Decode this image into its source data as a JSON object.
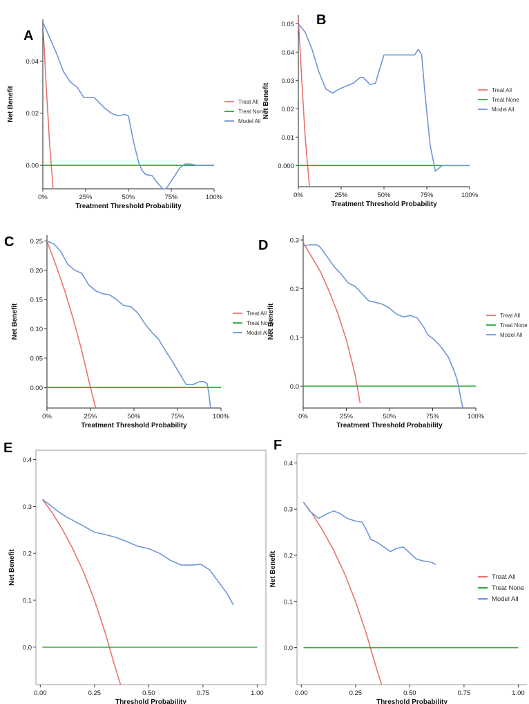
{
  "chart_data": [
    {
      "panel": "A",
      "type": "line",
      "title": "",
      "xlabel": "Treatment Threshold Probability",
      "ylabel": "Net Benefit",
      "xlim": [
        0,
        1
      ],
      "ylim": [
        -0.009,
        0.056
      ],
      "xticks": [
        0,
        0.25,
        0.5,
        0.75,
        1.0
      ],
      "xtick_labels": [
        "0%",
        "25%",
        "50%",
        "75%",
        "100%"
      ],
      "yticks": [
        0.0,
        0.02,
        0.04
      ],
      "ytick_labels": [
        "0.00",
        "0.02",
        "0.04"
      ],
      "legend": [
        "Treat All",
        "Treat None",
        "Model All"
      ],
      "colors": {
        "Treat All": "#e8726c",
        "Treat None": "#2aa835",
        "Model All": "#6f95d8"
      },
      "series": [
        {
          "name": "Treat All",
          "x": [
            0.0,
            0.02,
            0.04,
            0.06
          ],
          "y": [
            0.055,
            0.03,
            0.008,
            -0.009
          ]
        },
        {
          "name": "Treat None",
          "x": [
            0.0,
            1.0
          ],
          "y": [
            0.0,
            0.0
          ]
        },
        {
          "name": "Model All",
          "x": [
            0.0,
            0.04,
            0.08,
            0.12,
            0.16,
            0.2,
            0.24,
            0.3,
            0.36,
            0.4,
            0.44,
            0.48,
            0.5,
            0.53,
            0.56,
            0.58,
            0.6,
            0.64,
            0.66,
            0.7,
            0.72,
            0.76,
            0.8,
            0.83,
            0.86,
            0.9,
            1.0
          ],
          "y": [
            0.055,
            0.049,
            0.043,
            0.036,
            0.032,
            0.03,
            0.026,
            0.026,
            0.022,
            0.02,
            0.019,
            0.0195,
            0.019,
            0.009,
            0.001,
            -0.002,
            -0.0035,
            -0.004,
            -0.006,
            -0.009,
            -0.009,
            -0.005,
            -0.001,
            0.0005,
            0.0005,
            0.0,
            0.0
          ]
        }
      ]
    },
    {
      "panel": "B",
      "type": "line",
      "title": "",
      "xlabel": "Treatment Threshold Probability",
      "ylabel": "Net Benefit",
      "xlim": [
        0,
        1
      ],
      "ylim": [
        -0.0075,
        0.053
      ],
      "xticks": [
        0,
        0.25,
        0.5,
        0.75,
        1.0
      ],
      "xtick_labels": [
        "0%",
        "25%",
        "50%",
        "75%",
        "100%"
      ],
      "yticks": [
        0.0,
        0.01,
        0.02,
        0.03,
        0.04,
        0.05
      ],
      "ytick_labels": [
        "0.000",
        "0.01",
        "0.02",
        "0.03",
        "0.04",
        "0.05"
      ],
      "legend": [
        "Treat All",
        "Treat None",
        "Model All"
      ],
      "colors": {
        "Treat All": "#e8726c",
        "Treat None": "#2aa835",
        "Model All": "#6f95d8"
      },
      "series": [
        {
          "name": "Treat All",
          "x": [
            0.0,
            0.02,
            0.04,
            0.065
          ],
          "y": [
            0.052,
            0.03,
            0.01,
            -0.0075
          ]
        },
        {
          "name": "Treat None",
          "x": [
            0.0,
            1.0
          ],
          "y": [
            0.0,
            0.0
          ]
        },
        {
          "name": "Model All",
          "x": [
            0.0,
            0.04,
            0.08,
            0.12,
            0.16,
            0.2,
            0.24,
            0.28,
            0.32,
            0.36,
            0.38,
            0.42,
            0.45,
            0.48,
            0.5,
            0.53,
            0.56,
            0.6,
            0.64,
            0.68,
            0.7,
            0.72,
            0.74,
            0.77,
            0.8,
            0.82,
            0.84,
            1.0
          ],
          "y": [
            0.05,
            0.047,
            0.041,
            0.033,
            0.027,
            0.0255,
            0.027,
            0.028,
            0.029,
            0.031,
            0.031,
            0.0285,
            0.029,
            0.035,
            0.039,
            0.039,
            0.039,
            0.039,
            0.039,
            0.039,
            0.041,
            0.039,
            0.025,
            0.007,
            -0.002,
            -0.001,
            0.0,
            0.0
          ]
        }
      ]
    },
    {
      "panel": "C",
      "type": "line",
      "title": "",
      "xlabel": "Treatment Threshold Probability",
      "ylabel": "Net Benefit",
      "xlim": [
        0,
        1
      ],
      "ylim": [
        -0.035,
        0.26
      ],
      "xticks": [
        0,
        0.25,
        0.5,
        0.75,
        1.0
      ],
      "xtick_labels": [
        "0%",
        "25%",
        "50%",
        "75%",
        "100%"
      ],
      "yticks": [
        0.0,
        0.05,
        0.1,
        0.15,
        0.2,
        0.25
      ],
      "ytick_labels": [
        "0.00",
        "0.05",
        "0.10",
        "0.15",
        "0.20",
        "0.25"
      ],
      "legend": [
        "Treat All",
        "Treat None",
        "Model All"
      ],
      "colors": {
        "Treat All": "#e8726c",
        "Treat None": "#2aa835",
        "Model All": "#6f95d8"
      },
      "series": [
        {
          "name": "Treat All",
          "x": [
            0.0,
            0.05,
            0.1,
            0.15,
            0.2,
            0.25,
            0.28
          ],
          "y": [
            0.25,
            0.21,
            0.167,
            0.118,
            0.063,
            0.0,
            -0.035
          ]
        },
        {
          "name": "Treat None",
          "x": [
            0.0,
            1.0
          ],
          "y": [
            0.0,
            0.0
          ]
        },
        {
          "name": "Model All",
          "x": [
            0.0,
            0.04,
            0.08,
            0.12,
            0.16,
            0.2,
            0.24,
            0.28,
            0.32,
            0.36,
            0.4,
            0.44,
            0.48,
            0.52,
            0.56,
            0.6,
            0.64,
            0.68,
            0.72,
            0.76,
            0.8,
            0.84,
            0.86,
            0.88,
            0.9,
            0.92,
            0.93,
            0.94
          ],
          "y": [
            0.25,
            0.245,
            0.232,
            0.21,
            0.2,
            0.195,
            0.175,
            0.165,
            0.16,
            0.158,
            0.15,
            0.14,
            0.138,
            0.128,
            0.11,
            0.095,
            0.083,
            0.063,
            0.045,
            0.025,
            0.005,
            0.005,
            0.008,
            0.01,
            0.01,
            0.007,
            -0.01,
            -0.035
          ]
        }
      ]
    },
    {
      "panel": "D",
      "type": "line",
      "title": "",
      "xlabel": "Treatment Threshold Probability",
      "ylabel": "Net Benefit",
      "xlim": [
        0,
        1
      ],
      "ylim": [
        -0.045,
        0.31
      ],
      "xticks": [
        0,
        0.25,
        0.5,
        0.75,
        1.0
      ],
      "xtick_labels": [
        "0%",
        "25%",
        "50%",
        "75%",
        "100%"
      ],
      "yticks": [
        0.0,
        0.1,
        0.2,
        0.3
      ],
      "ytick_labels": [
        "0.0",
        "0.1",
        "0.2",
        "0.3"
      ],
      "legend": [
        "Treat All",
        "Treat None",
        "Model All"
      ],
      "colors": {
        "Treat All": "#e8726c",
        "Treat None": "#2aa835",
        "Model All": "#6f95d8"
      },
      "series": [
        {
          "name": "Treat All",
          "x": [
            0.0,
            0.05,
            0.1,
            0.15,
            0.2,
            0.25,
            0.3,
            0.33
          ],
          "y": [
            0.295,
            0.265,
            0.235,
            0.195,
            0.15,
            0.095,
            0.025,
            -0.035
          ]
        },
        {
          "name": "Treat None",
          "x": [
            0.0,
            1.0
          ],
          "y": [
            0.0,
            0.0
          ]
        },
        {
          "name": "Model All",
          "x": [
            0.0,
            0.04,
            0.08,
            0.1,
            0.14,
            0.18,
            0.22,
            0.26,
            0.3,
            0.34,
            0.38,
            0.42,
            0.46,
            0.5,
            0.54,
            0.58,
            0.62,
            0.66,
            0.7,
            0.72,
            0.76,
            0.8,
            0.84,
            0.87,
            0.89,
            0.9,
            0.91,
            0.925
          ],
          "y": [
            0.288,
            0.29,
            0.29,
            0.285,
            0.265,
            0.245,
            0.23,
            0.212,
            0.205,
            0.19,
            0.175,
            0.172,
            0.168,
            0.16,
            0.148,
            0.142,
            0.145,
            0.14,
            0.12,
            0.106,
            0.095,
            0.08,
            0.06,
            0.035,
            0.015,
            0.0,
            -0.02,
            -0.045
          ]
        }
      ]
    },
    {
      "panel": "E",
      "type": "line",
      "title": "",
      "xlabel": "Threshold Probability",
      "ylabel": "Net Benefit",
      "xlim": [
        -0.02,
        1.04
      ],
      "ylim": [
        -0.08,
        0.42
      ],
      "xticks": [
        0.0,
        0.25,
        0.5,
        0.75,
        1.0
      ],
      "xtick_labels": [
        "0.00",
        "0.25",
        "0.50",
        "0.75",
        "1.00"
      ],
      "yticks": [
        0.0,
        0.1,
        0.2,
        0.3,
        0.4
      ],
      "ytick_labels": [
        "0.0",
        "0.1",
        "0.2",
        "0.3",
        "0.4"
      ],
      "legend": [],
      "colors": {
        "Treat All": "#e8726c",
        "Treat None": "#2aa835",
        "Model All": "#6f95d8"
      },
      "series": [
        {
          "name": "Treat All",
          "x": [
            0.01,
            0.05,
            0.1,
            0.15,
            0.2,
            0.25,
            0.3,
            0.34,
            0.37
          ],
          "y": [
            0.315,
            0.29,
            0.253,
            0.21,
            0.16,
            0.1,
            0.03,
            -0.035,
            -0.08
          ]
        },
        {
          "name": "Treat None",
          "x": [
            0.01,
            1.0
          ],
          "y": [
            0.0,
            0.0
          ]
        },
        {
          "name": "Model All",
          "x": [
            0.01,
            0.04,
            0.08,
            0.12,
            0.16,
            0.2,
            0.25,
            0.3,
            0.35,
            0.4,
            0.45,
            0.5,
            0.55,
            0.6,
            0.65,
            0.7,
            0.74,
            0.78,
            0.82,
            0.86,
            0.89
          ],
          "y": [
            0.315,
            0.305,
            0.29,
            0.278,
            0.268,
            0.258,
            0.245,
            0.24,
            0.234,
            0.225,
            0.215,
            0.21,
            0.2,
            0.185,
            0.175,
            0.175,
            0.177,
            0.165,
            0.14,
            0.115,
            0.09
          ]
        }
      ]
    },
    {
      "panel": "F",
      "type": "line",
      "title": "",
      "xlabel": "Threshold Probability",
      "ylabel": "Net Benefit",
      "xlim": [
        -0.02,
        1.04
      ],
      "ylim": [
        -0.08,
        0.42
      ],
      "xticks": [
        0.0,
        0.25,
        0.5,
        0.75,
        1.0
      ],
      "xtick_labels": [
        "0.00",
        "0.25",
        "0.50",
        "0.75",
        "1.00"
      ],
      "yticks": [
        0.0,
        0.1,
        0.2,
        0.3,
        0.4
      ],
      "ytick_labels": [
        "0.0",
        "0.1",
        "0.2",
        "0.3",
        "0.4"
      ],
      "legend": [
        "Treat All",
        "Treat None",
        "Model All"
      ],
      "colors": {
        "Treat All": "#e8726c",
        "Treat None": "#2aa835",
        "Model All": "#6f95d8"
      },
      "series": [
        {
          "name": "Treat All",
          "x": [
            0.01,
            0.05,
            0.1,
            0.15,
            0.2,
            0.25,
            0.3,
            0.34,
            0.37
          ],
          "y": [
            0.315,
            0.29,
            0.253,
            0.21,
            0.16,
            0.1,
            0.03,
            -0.035,
            -0.08
          ]
        },
        {
          "name": "Treat None",
          "x": [
            0.01,
            1.0
          ],
          "y": [
            0.0,
            0.0
          ]
        },
        {
          "name": "Model All",
          "x": [
            0.01,
            0.04,
            0.08,
            0.12,
            0.15,
            0.18,
            0.21,
            0.25,
            0.28,
            0.3,
            0.32,
            0.35,
            0.38,
            0.41,
            0.44,
            0.47,
            0.5,
            0.53,
            0.56,
            0.6,
            0.62
          ],
          "y": [
            0.315,
            0.295,
            0.28,
            0.29,
            0.296,
            0.29,
            0.28,
            0.274,
            0.272,
            0.255,
            0.235,
            0.228,
            0.218,
            0.208,
            0.215,
            0.218,
            0.205,
            0.192,
            0.188,
            0.185,
            0.18
          ]
        }
      ]
    }
  ]
}
